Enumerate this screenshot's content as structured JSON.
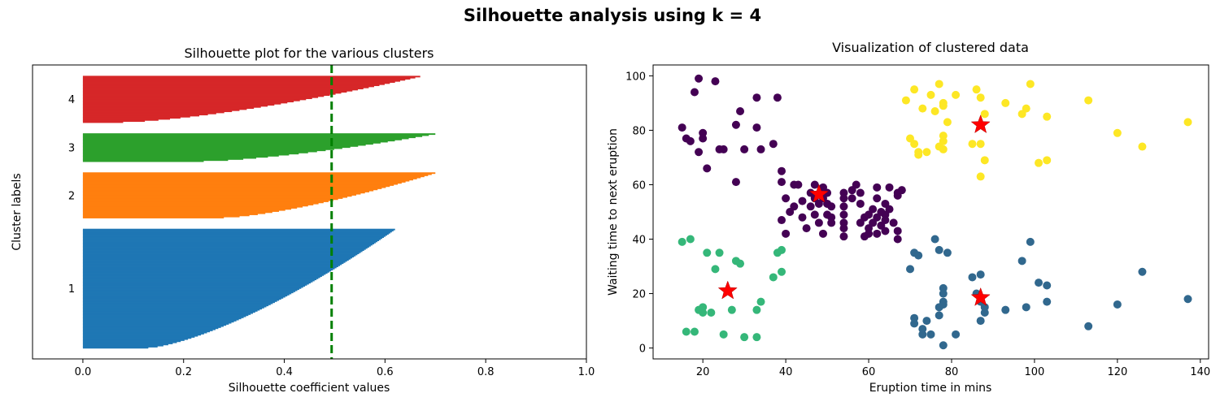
{
  "figure": {
    "suptitle": "Silhouette analysis using k = 4"
  },
  "chart_data": [
    {
      "type": "bar",
      "orientation": "horizontal",
      "title": "Silhouette plot for the various clusters",
      "xlabel": "Silhouette coefficient values",
      "ylabel": "Cluster labels",
      "xlim": [
        -0.1,
        1.0
      ],
      "xticks": [
        "0.0",
        "0.2",
        "0.4",
        "0.6",
        "0.8",
        "1.0"
      ],
      "average_silhouette": 0.494,
      "average_line_color": "#008000",
      "clusters": [
        {
          "label": "1",
          "color": "#1f77b4",
          "size": 110,
          "max": 0.62,
          "min": 0.13
        },
        {
          "label": "2",
          "color": "#ff7f0e",
          "size": 42,
          "max": 0.7,
          "min": 0.28
        },
        {
          "label": "3",
          "color": "#2ca02c",
          "size": 26,
          "max": 0.7,
          "min": 0.24
        },
        {
          "label": "4",
          "color": "#d62728",
          "size": 43,
          "max": 0.67,
          "min": 0.08
        }
      ],
      "grid": false
    },
    {
      "type": "scatter",
      "title": "Visualization of clustered data",
      "xlabel": "Eruption time in mins",
      "ylabel": "Waiting time to next eruption",
      "xlim": [
        8,
        142
      ],
      "ylim": [
        -4,
        104
      ],
      "xticks": [
        20,
        40,
        60,
        80,
        100,
        120,
        140
      ],
      "yticks": [
        0,
        20,
        40,
        60,
        80,
        100
      ],
      "grid": false,
      "series": [
        {
          "color": "#440154",
          "points": [
            [
              15,
              81
            ],
            [
              16,
              77
            ],
            [
              17,
              76
            ],
            [
              18,
              94
            ],
            [
              19,
              99
            ],
            [
              20,
              79
            ],
            [
              20,
              77
            ],
            [
              19,
              72
            ],
            [
              21,
              66
            ],
            [
              23,
              98
            ],
            [
              24,
              73
            ],
            [
              25,
              73
            ],
            [
              28,
              82
            ],
            [
              29,
              87
            ],
            [
              30,
              73
            ],
            [
              33,
              92
            ],
            [
              33,
              81
            ],
            [
              34,
              73
            ],
            [
              37,
              75
            ],
            [
              38,
              92
            ],
            [
              28,
              61
            ],
            [
              39,
              65
            ],
            [
              39,
              61
            ],
            [
              40,
              55
            ],
            [
              39,
              47
            ],
            [
              40,
              42
            ],
            [
              42,
              60
            ],
            [
              43,
              60
            ],
            [
              42,
              52
            ],
            [
              41,
              50
            ],
            [
              44,
              54
            ],
            [
              44,
              48
            ],
            [
              45,
              44
            ],
            [
              46,
              57
            ],
            [
              46,
              52
            ],
            [
              47,
              60
            ],
            [
              47,
              55
            ],
            [
              48,
              53
            ],
            [
              47,
              49
            ],
            [
              48,
              46
            ],
            [
              49,
              59
            ],
            [
              49,
              55
            ],
            [
              50,
              57
            ],
            [
              50,
              53
            ],
            [
              50,
              49
            ],
            [
              49,
              42
            ],
            [
              51,
              52
            ],
            [
              51,
              48
            ],
            [
              51,
              46
            ],
            [
              54,
              57
            ],
            [
              54,
              55
            ],
            [
              54,
              52
            ],
            [
              54,
              49
            ],
            [
              54,
              46
            ],
            [
              54,
              44
            ],
            [
              54,
              41
            ],
            [
              56,
              58
            ],
            [
              56,
              55
            ],
            [
              57,
              60
            ],
            [
              58,
              57
            ],
            [
              58,
              53
            ],
            [
              58,
              46
            ],
            [
              59,
              48
            ],
            [
              59,
              41
            ],
            [
              60,
              49
            ],
            [
              60,
              44
            ],
            [
              60,
              42
            ],
            [
              61,
              51
            ],
            [
              61,
              46
            ],
            [
              62,
              59
            ],
            [
              62,
              55
            ],
            [
              62,
              48
            ],
            [
              62,
              42
            ],
            [
              63,
              50
            ],
            [
              63,
              45
            ],
            [
              64,
              53
            ],
            [
              64,
              49
            ],
            [
              64,
              47
            ],
            [
              64,
              43
            ],
            [
              65,
              59
            ],
            [
              65,
              51
            ],
            [
              66,
              46
            ],
            [
              67,
              57
            ],
            [
              67,
              56
            ],
            [
              67,
              43
            ],
            [
              67,
              40
            ],
            [
              68,
              58
            ]
          ]
        },
        {
          "color": "#31688e",
          "points": [
            [
              70,
              29
            ],
            [
              71,
              35
            ],
            [
              71,
              11
            ],
            [
              71,
              9
            ],
            [
              72,
              34
            ],
            [
              73,
              7
            ],
            [
              73,
              5
            ],
            [
              74,
              10
            ],
            [
              75,
              5
            ],
            [
              76,
              40
            ],
            [
              77,
              36
            ],
            [
              77,
              15
            ],
            [
              77,
              12
            ],
            [
              78,
              22
            ],
            [
              78,
              20
            ],
            [
              78,
              17
            ],
            [
              78,
              16
            ],
            [
              78,
              1
            ],
            [
              79,
              35
            ],
            [
              81,
              5
            ],
            [
              85,
              26
            ],
            [
              86,
              20
            ],
            [
              87,
              27
            ],
            [
              87,
              17
            ],
            [
              87,
              10
            ],
            [
              88,
              15
            ],
            [
              88,
              13
            ],
            [
              93,
              14
            ],
            [
              97,
              32
            ],
            [
              98,
              15
            ],
            [
              99,
              39
            ],
            [
              101,
              24
            ],
            [
              103,
              23
            ],
            [
              103,
              17
            ],
            [
              113,
              8
            ],
            [
              120,
              16
            ],
            [
              126,
              28
            ],
            [
              137,
              18
            ]
          ]
        },
        {
          "color": "#35b779",
          "points": [
            [
              15,
              39
            ],
            [
              16,
              6
            ],
            [
              17,
              40
            ],
            [
              18,
              6
            ],
            [
              19,
              14
            ],
            [
              20,
              15
            ],
            [
              20,
              13
            ],
            [
              21,
              35
            ],
            [
              22,
              13
            ],
            [
              23,
              29
            ],
            [
              24,
              35
            ],
            [
              25,
              5
            ],
            [
              27,
              14
            ],
            [
              28,
              32
            ],
            [
              29,
              31
            ],
            [
              30,
              4
            ],
            [
              33,
              4
            ],
            [
              33,
              14
            ],
            [
              34,
              17
            ],
            [
              37,
              26
            ],
            [
              38,
              35
            ],
            [
              39,
              36
            ],
            [
              39,
              28
            ]
          ]
        },
        {
          "color": "#fde725",
          "points": [
            [
              69,
              91
            ],
            [
              70,
              77
            ],
            [
              71,
              95
            ],
            [
              71,
              75
            ],
            [
              72,
              71
            ],
            [
              72,
              72
            ],
            [
              73,
              88
            ],
            [
              74,
              72
            ],
            [
              75,
              93
            ],
            [
              76,
              87
            ],
            [
              77,
              97
            ],
            [
              77,
              74
            ],
            [
              78,
              90
            ],
            [
              78,
              89
            ],
            [
              78,
              78
            ],
            [
              78,
              76
            ],
            [
              78,
              73
            ],
            [
              79,
              83
            ],
            [
              81,
              93
            ],
            [
              85,
              75
            ],
            [
              86,
              95
            ],
            [
              87,
              92
            ],
            [
              87,
              75
            ],
            [
              87,
              63
            ],
            [
              88,
              86
            ],
            [
              88,
              69
            ],
            [
              93,
              90
            ],
            [
              97,
              86
            ],
            [
              98,
              88
            ],
            [
              99,
              97
            ],
            [
              101,
              68
            ],
            [
              103,
              85
            ],
            [
              103,
              69
            ],
            [
              113,
              91
            ],
            [
              120,
              79
            ],
            [
              126,
              74
            ],
            [
              137,
              83
            ]
          ]
        }
      ],
      "centroids": {
        "color": "#ff0000",
        "points": [
          [
            48,
            56.5
          ],
          [
            87,
            18.5
          ],
          [
            26,
            21
          ],
          [
            87,
            82
          ]
        ]
      }
    }
  ]
}
